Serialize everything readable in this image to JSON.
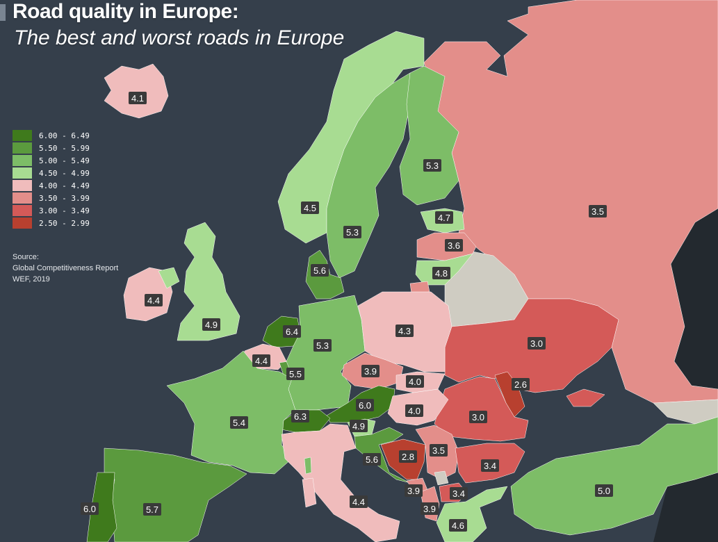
{
  "header": {
    "title": "Road quality in Europe:",
    "subtitle": "The best and worst roads in Europe"
  },
  "legend": {
    "items": [
      {
        "label": "6.00 - 6.49",
        "color": "#3f7a1c"
      },
      {
        "label": "5.50 - 5.99",
        "color": "#5b9a3e"
      },
      {
        "label": "5.00 - 5.49",
        "color": "#7dbd67"
      },
      {
        "label": "4.50 - 4.99",
        "color": "#a8dc92"
      },
      {
        "label": "4.00 - 4.49",
        "color": "#f0bcbc"
      },
      {
        "label": "3.50 - 3.99",
        "color": "#e38e8a"
      },
      {
        "label": "3.00 - 3.49",
        "color": "#d45a58"
      },
      {
        "label": "2.50 - 2.99",
        "color": "#b8402f"
      }
    ]
  },
  "source": {
    "label": "Source:",
    "line1": "Global Competitiveness Report",
    "line2": "WEF, 2019"
  },
  "colors": {
    "background": "#353f4b",
    "no_data": "#cfccc2",
    "label_bg": "#3a3a3a",
    "label_text": "#ffffff"
  },
  "regions": [
    {
      "name": "Iceland",
      "value": "4.1"
    },
    {
      "name": "Norway",
      "value": "4.5"
    },
    {
      "name": "Sweden",
      "value": "5.3"
    },
    {
      "name": "Finland",
      "value": "5.3"
    },
    {
      "name": "Russia",
      "value": "3.5"
    },
    {
      "name": "Estonia",
      "value": "4.7"
    },
    {
      "name": "Latvia",
      "value": "3.6"
    },
    {
      "name": "Lithuania",
      "value": "4.8"
    },
    {
      "name": "Denmark",
      "value": "5.6"
    },
    {
      "name": "Ireland",
      "value": "4.4"
    },
    {
      "name": "United Kingdom",
      "value": "4.9"
    },
    {
      "name": "Netherlands",
      "value": "6.4"
    },
    {
      "name": "Belgium",
      "value": "4.4"
    },
    {
      "name": "Luxembourg",
      "value": "5.5"
    },
    {
      "name": "Germany",
      "value": "5.3"
    },
    {
      "name": "Poland",
      "value": "4.3"
    },
    {
      "name": "Czechia",
      "value": "3.9"
    },
    {
      "name": "Slovakia",
      "value": "4.0"
    },
    {
      "name": "Hungary",
      "value": "4.0"
    },
    {
      "name": "Austria",
      "value": "6.0"
    },
    {
      "name": "Switzerland",
      "value": "6.3"
    },
    {
      "name": "Slovenia",
      "value": "4.9"
    },
    {
      "name": "France",
      "value": "5.4"
    },
    {
      "name": "Ukraine",
      "value": "3.0"
    },
    {
      "name": "Moldova",
      "value": "2.6"
    },
    {
      "name": "Romania",
      "value": "3.0"
    },
    {
      "name": "Croatia",
      "value": "5.6"
    },
    {
      "name": "Bosnia and Herzegovina",
      "value": "2.8"
    },
    {
      "name": "Serbia",
      "value": "3.5"
    },
    {
      "name": "Bulgaria",
      "value": "3.4"
    },
    {
      "name": "Montenegro",
      "value": "3.9"
    },
    {
      "name": "Albania",
      "value": "3.9"
    },
    {
      "name": "North Macedonia",
      "value": "3.4"
    },
    {
      "name": "Greece",
      "value": "4.6"
    },
    {
      "name": "Italy",
      "value": "4.4"
    },
    {
      "name": "Spain",
      "value": "5.7"
    },
    {
      "name": "Portugal",
      "value": "6.0"
    },
    {
      "name": "Turkey",
      "value": "5.0"
    }
  ]
}
